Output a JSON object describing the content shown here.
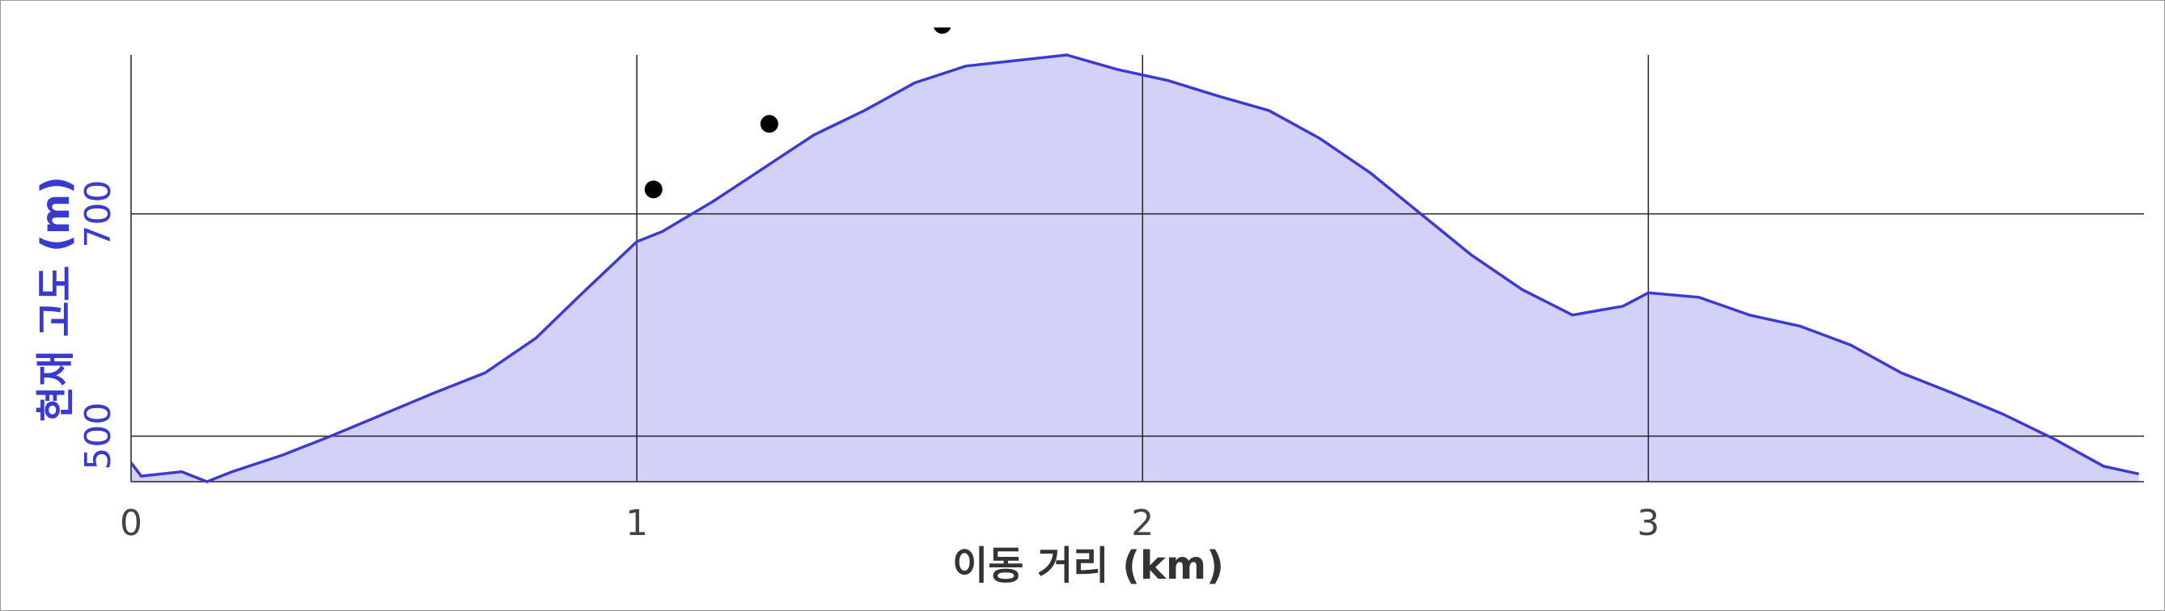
{
  "chart_data": {
    "type": "area",
    "x_label": "이동 거리 (km)",
    "y_label": "현재 고도 (m)",
    "x": [
      0,
      0.02,
      0.1,
      0.15,
      0.2,
      0.3,
      0.4,
      0.5,
      0.6,
      0.7,
      0.8,
      0.9,
      1.0,
      1.05,
      1.15,
      1.25,
      1.35,
      1.45,
      1.55,
      1.65,
      1.75,
      1.85,
      1.95,
      2.05,
      2.15,
      2.25,
      2.35,
      2.45,
      2.55,
      2.65,
      2.75,
      2.85,
      2.95,
      3.0,
      3.1,
      3.2,
      3.3,
      3.4,
      3.5,
      3.6,
      3.7,
      3.8,
      3.9,
      3.97
    ],
    "values": [
      476,
      464,
      468,
      459,
      468,
      483,
      501,
      520,
      539,
      557,
      588,
      632,
      675,
      684,
      711,
      741,
      771,
      793,
      818,
      833,
      838,
      843,
      830,
      820,
      806,
      793,
      768,
      737,
      700,
      663,
      632,
      609,
      617,
      629,
      625,
      609,
      599,
      582,
      557,
      539,
      520,
      498,
      473,
      466
    ],
    "color": "#3b3bd1",
    "fill": "#d2d1f7",
    "points": {
      "x": [
        1.033,
        1.262,
        1.604
      ],
      "y": [
        722,
        781,
        870
      ],
      "color": "#000000"
    },
    "xlim": [
      0,
      3.98
    ],
    "ylim": [
      459,
      843
    ],
    "xticks": [
      0,
      1,
      2,
      3
    ],
    "yticks": [
      500,
      700
    ],
    "grid": true
  }
}
